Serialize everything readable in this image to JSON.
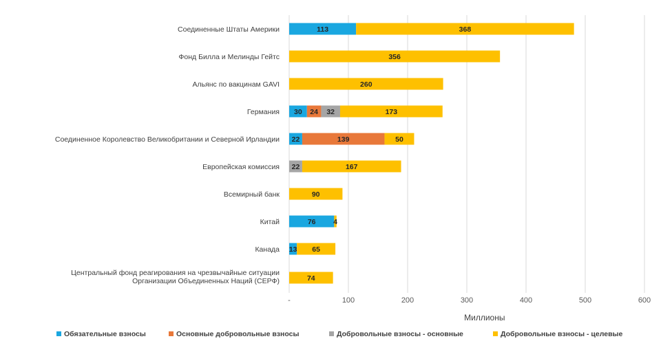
{
  "chart_data": {
    "type": "bar",
    "orientation": "horizontal",
    "stacked": true,
    "xlabel": "Миллионы",
    "xlim": [
      0,
      600
    ],
    "xticks": [
      0,
      100,
      200,
      300,
      400,
      500,
      600
    ],
    "xtick_labels": [
      "-",
      "100",
      "200",
      "300",
      "400",
      "500",
      "600"
    ],
    "grid": true,
    "legend_position": "bottom",
    "categories": [
      [
        "Соединенные Штаты Америки"
      ],
      [
        "Фонд Билла и Мелинды Гейтс"
      ],
      [
        "Альянс по вакцинам GAVI"
      ],
      [
        "Германия"
      ],
      [
        "Соединенное Королевство Великобритании и Северной Ирландии"
      ],
      [
        "Европейская комиссия"
      ],
      [
        "Всемирный банк"
      ],
      [
        "Китай"
      ],
      [
        "Канада"
      ],
      [
        "Центральный фонд реагирования на чрезвычайные ситуации",
        "Организации Объединенных Наций (СЕРФ)"
      ]
    ],
    "series": [
      {
        "name": "Обязательные взносы",
        "color": "#1aa7e0",
        "values": [
          113,
          0,
          0,
          30,
          22,
          0,
          0,
          76,
          13,
          0
        ]
      },
      {
        "name": "Основные добровольные взносы",
        "color": "#e8783a",
        "values": [
          0,
          0,
          0,
          24,
          139,
          0,
          0,
          0,
          0,
          0
        ]
      },
      {
        "name": "Добровольные взносы - основные",
        "color": "#a5a5a5",
        "values": [
          0,
          0,
          0,
          32,
          0,
          22,
          0,
          0,
          0,
          0
        ]
      },
      {
        "name": "Добровольные взносы - целевые",
        "color": "#fec000",
        "values": [
          368,
          356,
          260,
          173,
          50,
          167,
          90,
          4,
          65,
          74
        ]
      }
    ]
  }
}
